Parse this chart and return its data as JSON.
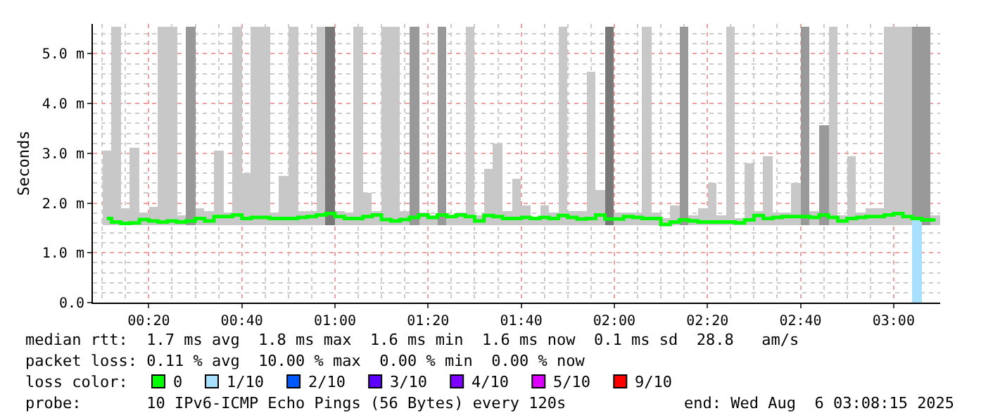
{
  "chart_data": {
    "type": "bar",
    "ylabel": "Seconds",
    "legend_title": "loss color:",
    "legend": "bottom",
    "grid": true,
    "x": [
      "2025-08-06T00:11",
      "2025-08-06T00:13",
      "2025-08-06T00:15",
      "2025-08-06T00:17",
      "2025-08-06T00:19",
      "2025-08-06T00:21",
      "2025-08-06T00:23",
      "2025-08-06T00:25",
      "2025-08-06T00:27",
      "2025-08-06T00:29",
      "2025-08-06T00:31",
      "2025-08-06T00:33",
      "2025-08-06T00:35",
      "2025-08-06T00:37",
      "2025-08-06T00:39",
      "2025-08-06T00:41",
      "2025-08-06T00:43",
      "2025-08-06T00:45",
      "2025-08-06T00:47",
      "2025-08-06T00:49",
      "2025-08-06T00:51",
      "2025-08-06T00:53",
      "2025-08-06T00:55",
      "2025-08-06T00:57",
      "2025-08-06T00:59",
      "2025-08-06T01:01",
      "2025-08-06T01:03",
      "2025-08-06T01:05",
      "2025-08-06T01:07",
      "2025-08-06T01:09",
      "2025-08-06T01:11",
      "2025-08-06T01:13",
      "2025-08-06T01:15",
      "2025-08-06T01:17",
      "2025-08-06T01:19",
      "2025-08-06T01:21",
      "2025-08-06T01:23",
      "2025-08-06T01:25",
      "2025-08-06T01:27",
      "2025-08-06T01:29",
      "2025-08-06T01:31",
      "2025-08-06T01:33",
      "2025-08-06T01:35",
      "2025-08-06T01:37",
      "2025-08-06T01:39",
      "2025-08-06T01:41",
      "2025-08-06T01:43",
      "2025-08-06T01:45",
      "2025-08-06T01:47",
      "2025-08-06T01:49",
      "2025-08-06T01:51",
      "2025-08-06T01:53",
      "2025-08-06T01:55",
      "2025-08-06T01:57",
      "2025-08-06T01:59",
      "2025-08-06T02:01",
      "2025-08-06T02:03",
      "2025-08-06T02:05",
      "2025-08-06T02:07",
      "2025-08-06T02:09",
      "2025-08-06T02:11",
      "2025-08-06T02:13",
      "2025-08-06T02:15",
      "2025-08-06T02:17",
      "2025-08-06T02:19",
      "2025-08-06T02:21",
      "2025-08-06T02:23",
      "2025-08-06T02:25",
      "2025-08-06T02:27",
      "2025-08-06T02:29",
      "2025-08-06T02:31",
      "2025-08-06T02:33",
      "2025-08-06T02:35",
      "2025-08-06T02:37",
      "2025-08-06T02:39",
      "2025-08-06T02:41",
      "2025-08-06T02:43",
      "2025-08-06T02:45",
      "2025-08-06T02:47",
      "2025-08-06T02:49",
      "2025-08-06T02:51",
      "2025-08-06T02:53",
      "2025-08-06T02:55",
      "2025-08-06T02:57",
      "2025-08-06T02:59",
      "2025-08-06T03:01",
      "2025-08-06T03:03",
      "2025-08-06T03:05",
      "2025-08-06T03:07",
      "2025-08-06T03:09"
    ],
    "xlim": [
      "2025-08-06T00:08",
      "2025-08-06T03:10"
    ],
    "xticks": [
      {
        "value": "2025-08-06T00:20",
        "label": "00:20"
      },
      {
        "value": "2025-08-06T00:40",
        "label": "00:40"
      },
      {
        "value": "2025-08-06T01:00",
        "label": "01:00"
      },
      {
        "value": "2025-08-06T01:20",
        "label": "01:20"
      },
      {
        "value": "2025-08-06T01:40",
        "label": "01:40"
      },
      {
        "value": "2025-08-06T02:00",
        "label": "02:00"
      },
      {
        "value": "2025-08-06T02:20",
        "label": "02:20"
      },
      {
        "value": "2025-08-06T02:40",
        "label": "02:40"
      },
      {
        "value": "2025-08-06T03:00",
        "label": "03:00"
      }
    ],
    "ylim": [
      0,
      5.6
    ],
    "yticks": [
      {
        "value": 0,
        "label": "0.0"
      },
      {
        "value": 1,
        "label": "1.0 m"
      },
      {
        "value": 2,
        "label": "2.0 m"
      },
      {
        "value": 3,
        "label": "3.0 m"
      },
      {
        "value": 4,
        "label": "4.0 m"
      },
      {
        "value": 5,
        "label": "5.0 m"
      }
    ],
    "series": [
      {
        "base": [
          1.55,
          1.55,
          1.55,
          1.55,
          1.55,
          1.55,
          1.55,
          1.55,
          1.55,
          1.55,
          1.55,
          1.55,
          1.55,
          1.55,
          1.55,
          1.55,
          1.55,
          1.55,
          1.55,
          1.55,
          1.55,
          1.55,
          1.55,
          1.55,
          1.55,
          1.55,
          1.55,
          1.55,
          1.55,
          1.55,
          1.55,
          1.55,
          1.55,
          1.55,
          1.55,
          1.55,
          1.55,
          1.55,
          1.55,
          1.55,
          1.55,
          1.55,
          1.55,
          1.55,
          1.55,
          1.55,
          1.55,
          1.55,
          1.55,
          1.55,
          1.55,
          1.55,
          1.55,
          1.55,
          1.55,
          1.55,
          1.55,
          1.55,
          1.55,
          1.55,
          1.55,
          1.55,
          1.55,
          1.55,
          1.55,
          1.55,
          1.55,
          1.55,
          1.55,
          1.55,
          1.55,
          1.55,
          1.55,
          1.55,
          1.55,
          1.55,
          1.55,
          1.55,
          1.55,
          1.55,
          1.55,
          1.55,
          1.55,
          1.55,
          1.55,
          1.55,
          1.55,
          1.55,
          1.55,
          1.55
        ],
        "values": [
          1.5,
          4.0,
          0.35,
          1.55,
          0.25,
          0.38,
          4.0,
          4.0,
          0.2,
          4.0,
          0.35,
          0.3,
          1.5,
          0.25,
          4.0,
          1.05,
          4.0,
          4.0,
          0.25,
          1.0,
          4.0,
          0.3,
          0.3,
          4.0,
          4.0,
          0.3,
          0.25,
          4.0,
          0.65,
          0.3,
          4.0,
          4.0,
          0.3,
          4.0,
          0.25,
          0.2,
          4.0,
          0.2,
          0.25,
          4.0,
          0.2,
          1.15,
          1.65,
          0.3,
          0.95,
          0.4,
          0.15,
          0.4,
          0.25,
          4.0,
          0.3,
          0.3,
          3.1,
          0.7,
          4.0,
          0.25,
          0.25,
          0.25,
          4.0,
          0.25,
          0.15,
          0.4,
          4.0,
          0.2,
          0.35,
          0.85,
          0.2,
          4.0,
          0.15,
          1.25,
          0.3,
          1.4,
          0.25,
          0.25,
          0.85,
          4.0,
          0.3,
          2.0,
          4.0,
          0.2,
          1.4,
          0.25,
          0.35,
          0.35,
          4.0,
          4.0,
          4.0,
          4.0,
          4.0,
          0.2
        ],
        "colors": [
          "#c8c8c8",
          "#c8c8c8",
          "#c8c8c8",
          "#c8c8c8",
          "#c8c8c8",
          "#c8c8c8",
          "#c8c8c8",
          "#c8c8c8",
          "#c8c8c8",
          "#999999",
          "#c8c8c8",
          "#c8c8c8",
          "#c8c8c8",
          "#c8c8c8",
          "#c8c8c8",
          "#c8c8c8",
          "#c8c8c8",
          "#c8c8c8",
          "#c8c8c8",
          "#c8c8c8",
          "#c8c8c8",
          "#c8c8c8",
          "#c8c8c8",
          "#c8c8c8",
          "#787878",
          "#c8c8c8",
          "#c8c8c8",
          "#c8c8c8",
          "#c8c8c8",
          "#c8c8c8",
          "#c8c8c8",
          "#c8c8c8",
          "#c8c8c8",
          "#999999",
          "#c8c8c8",
          "#c8c8c8",
          "#999999",
          "#c8c8c8",
          "#c8c8c8",
          "#c8c8c8",
          "#c8c8c8",
          "#c8c8c8",
          "#c8c8c8",
          "#c8c8c8",
          "#c8c8c8",
          "#c8c8c8",
          "#c8c8c8",
          "#c8c8c8",
          "#c8c8c8",
          "#c8c8c8",
          "#c8c8c8",
          "#c8c8c8",
          "#c8c8c8",
          "#c8c8c8",
          "#787878",
          "#c8c8c8",
          "#c8c8c8",
          "#c8c8c8",
          "#c8c8c8",
          "#c8c8c8",
          "#c8c8c8",
          "#c8c8c8",
          "#999999",
          "#c8c8c8",
          "#c8c8c8",
          "#c8c8c8",
          "#c8c8c8",
          "#c8c8c8",
          "#c8c8c8",
          "#c8c8c8",
          "#c8c8c8",
          "#c8c8c8",
          "#c8c8c8",
          "#c8c8c8",
          "#c8c8c8",
          "#999999",
          "#c8c8c8",
          "#999999",
          "#c8c8c8",
          "#c8c8c8",
          "#c8c8c8",
          "#c8c8c8",
          "#c8c8c8",
          "#c8c8c8",
          "#c8c8c8",
          "#c8c8c8",
          "#c8c8c8",
          "#999999",
          "#999999",
          "#c8c8c8"
        ]
      },
      {
        "name": "1/10",
        "color": "#a8e0ff",
        "values": [
          null,
          null,
          null,
          null,
          null,
          null,
          null,
          null,
          null,
          null,
          null,
          null,
          null,
          null,
          null,
          null,
          null,
          null,
          null,
          null,
          null,
          null,
          null,
          null,
          null,
          null,
          null,
          null,
          null,
          null,
          null,
          null,
          null,
          null,
          null,
          null,
          null,
          null,
          null,
          null,
          null,
          null,
          null,
          null,
          null,
          null,
          null,
          null,
          null,
          null,
          null,
          null,
          null,
          null,
          null,
          null,
          null,
          null,
          null,
          null,
          null,
          null,
          null,
          null,
          null,
          null,
          null,
          null,
          null,
          null,
          null,
          null,
          null,
          null,
          null,
          null,
          null,
          null,
          null,
          null,
          null,
          null,
          null,
          null,
          null,
          null,
          null,
          1.67,
          null,
          null
        ]
      },
      {
        "name": "2/10",
        "color": "#0059ff",
        "values": [
          null,
          null,
          null,
          null,
          null,
          null,
          null,
          null,
          null,
          null,
          null,
          null,
          null,
          null,
          null,
          null,
          null,
          null,
          null,
          null,
          null,
          null,
          null,
          null,
          null,
          null,
          null,
          null,
          null,
          null,
          null,
          null,
          null,
          null,
          null,
          null,
          null,
          null,
          null,
          null,
          null,
          null,
          null,
          null,
          null,
          null,
          null,
          null,
          null,
          null,
          null,
          null,
          null,
          null,
          null,
          null,
          null,
          null,
          null,
          null,
          null,
          null,
          null,
          null,
          null,
          null,
          null,
          null,
          null,
          null,
          null,
          null,
          null,
          null,
          null,
          null,
          null,
          null,
          null,
          null,
          null,
          null,
          null,
          null,
          null,
          null,
          null,
          null,
          null,
          null
        ]
      },
      {
        "name": "3/10",
        "color": "#5e00ff",
        "values": [
          null,
          null,
          null,
          null,
          null,
          null,
          null,
          null,
          null,
          null,
          null,
          null,
          null,
          null,
          null,
          null,
          null,
          null,
          null,
          null,
          null,
          null,
          null,
          null,
          null,
          null,
          null,
          null,
          null,
          null,
          null,
          null,
          null,
          null,
          null,
          null,
          null,
          null,
          null,
          null,
          null,
          null,
          null,
          null,
          null,
          null,
          null,
          null,
          null,
          null,
          null,
          null,
          null,
          null,
          null,
          null,
          null,
          null,
          null,
          null,
          null,
          null,
          null,
          null,
          null,
          null,
          null,
          null,
          null,
          null,
          null,
          null,
          null,
          null,
          null,
          null,
          null,
          null,
          null,
          null,
          null,
          null,
          null,
          null,
          null,
          null,
          null,
          null,
          null,
          null
        ]
      },
      {
        "name": "4/10",
        "color": "#7e00ff",
        "values": [
          null,
          null,
          null,
          null,
          null,
          null,
          null,
          null,
          null,
          null,
          null,
          null,
          null,
          null,
          null,
          null,
          null,
          null,
          null,
          null,
          null,
          null,
          null,
          null,
          null,
          null,
          null,
          null,
          null,
          null,
          null,
          null,
          null,
          null,
          null,
          null,
          null,
          null,
          null,
          null,
          null,
          null,
          null,
          null,
          null,
          null,
          null,
          null,
          null,
          null,
          null,
          null,
          null,
          null,
          null,
          null,
          null,
          null,
          null,
          null,
          null,
          null,
          null,
          null,
          null,
          null,
          null,
          null,
          null,
          null,
          null,
          null,
          null,
          null,
          null,
          null,
          null,
          null,
          null,
          null,
          null,
          null,
          null,
          null,
          null,
          null,
          null,
          null,
          null,
          null
        ]
      },
      {
        "name": "5/10",
        "color": "#dd00ff",
        "values": [
          null,
          null,
          null,
          null,
          null,
          null,
          null,
          null,
          null,
          null,
          null,
          null,
          null,
          null,
          null,
          null,
          null,
          null,
          null,
          null,
          null,
          null,
          null,
          null,
          null,
          null,
          null,
          null,
          null,
          null,
          null,
          null,
          null,
          null,
          null,
          null,
          null,
          null,
          null,
          null,
          null,
          null,
          null,
          null,
          null,
          null,
          null,
          null,
          null,
          null,
          null,
          null,
          null,
          null,
          null,
          null,
          null,
          null,
          null,
          null,
          null,
          null,
          null,
          null,
          null,
          null,
          null,
          null,
          null,
          null,
          null,
          null,
          null,
          null,
          null,
          null,
          null,
          null,
          null,
          null,
          null,
          null,
          null,
          null,
          null,
          null,
          null,
          null,
          null,
          null
        ]
      },
      {
        "name": "9/10",
        "color": "#ff0000",
        "values": [
          null,
          null,
          null,
          null,
          null,
          null,
          null,
          null,
          null,
          null,
          null,
          null,
          null,
          null,
          null,
          null,
          null,
          null,
          null,
          null,
          null,
          null,
          null,
          null,
          null,
          null,
          null,
          null,
          null,
          null,
          null,
          null,
          null,
          null,
          null,
          null,
          null,
          null,
          null,
          null,
          null,
          null,
          null,
          null,
          null,
          null,
          null,
          null,
          null,
          null,
          null,
          null,
          null,
          null,
          null,
          null,
          null,
          null,
          null,
          null,
          null,
          null,
          null,
          null,
          null,
          null,
          null,
          null,
          null,
          null,
          null,
          null,
          null,
          null,
          null,
          null,
          null,
          null,
          null,
          null,
          null,
          null,
          null,
          null,
          null,
          null,
          null,
          null,
          null,
          null
        ]
      },
      {
        "type": "step",
        "name": "0",
        "color": "#00ff00",
        "values": [
          1.69,
          1.62,
          1.59,
          1.6,
          1.67,
          1.64,
          1.62,
          1.64,
          1.62,
          1.64,
          1.69,
          1.64,
          1.73,
          1.73,
          1.76,
          1.69,
          1.71,
          1.71,
          1.69,
          1.69,
          1.69,
          1.71,
          1.73,
          1.76,
          1.79,
          1.73,
          1.69,
          1.69,
          1.73,
          1.76,
          1.67,
          1.64,
          1.67,
          1.71,
          1.76,
          1.71,
          1.76,
          1.73,
          1.76,
          1.73,
          1.64,
          1.75,
          1.73,
          1.69,
          1.69,
          1.71,
          1.69,
          1.71,
          1.69,
          1.75,
          1.71,
          1.68,
          1.69,
          1.76,
          1.68,
          1.68,
          1.73,
          1.71,
          1.69,
          1.69,
          1.57,
          1.62,
          1.66,
          1.64,
          1.62,
          1.62,
          1.62,
          1.62,
          1.6,
          1.66,
          1.75,
          1.69,
          1.71,
          1.73,
          1.73,
          1.73,
          1.71,
          1.76,
          1.71,
          1.64,
          1.69,
          1.71,
          1.73,
          1.73,
          1.76,
          1.79,
          1.73,
          1.69,
          1.66,
          1.66
        ]
      }
    ],
    "annotations": [
      "median rtt:  1.7 ms avg  1.8 ms max  1.6 ms min  1.6 ms now  0.1 ms sd  28.8   am/s",
      "packet loss: 0.11 % avg  10.00 % max  0.00 % min  0.00 % now",
      "probe:       10 IPv6-ICMP Echo Pings (56 Bytes) every 120s",
      "end: Wed Aug  6 03:08:15 2025"
    ]
  }
}
